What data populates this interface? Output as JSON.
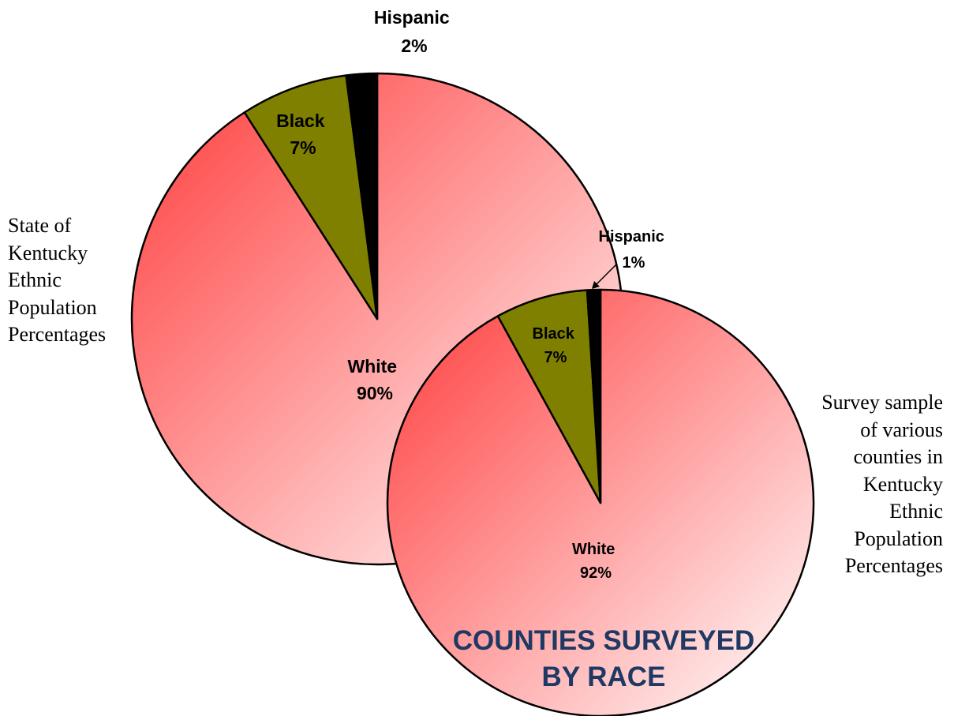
{
  "chart_data": [
    {
      "type": "pie",
      "title": "State of Kentucky Ethnic Population Percentages",
      "title_lines": [
        "State of",
        "Kentucky",
        "Ethnic",
        "Population",
        "Percentages"
      ],
      "slices": [
        {
          "label": "White",
          "value": 90,
          "display": "90%"
        },
        {
          "label": "Black",
          "value": 7,
          "display": "7%"
        },
        {
          "label": "Hispanic",
          "value": 2,
          "display": "2%"
        }
      ]
    },
    {
      "type": "pie",
      "title": "Survey sample of various counties in Kentucky Ethnic Population Percentages",
      "title_lines": [
        "Survey sample",
        "of various",
        "counties in",
        "Kentucky",
        "Ethnic",
        "Population",
        "Percentages"
      ],
      "slices": [
        {
          "label": "White",
          "value": 92,
          "display": "92%"
        },
        {
          "label": "Black",
          "value": 7,
          "display": "7%"
        },
        {
          "label": "Hispanic",
          "value": 1,
          "display": "1%"
        }
      ]
    }
  ],
  "main_title": "COUNTIES SURVEYED BY RACE",
  "main_title_lines": [
    "COUNTIES SURVEYED",
    "BY RACE"
  ],
  "colors": {
    "white_light": "#ffffff",
    "white_dark": "#ff3b3b",
    "black_slice": "#808000",
    "hispanic_slice": "#000000",
    "outline": "#000000",
    "title": "#1f3864"
  }
}
